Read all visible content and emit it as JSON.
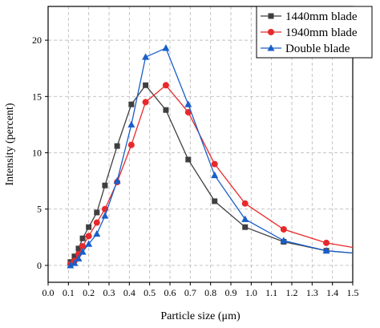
{
  "chart_data": {
    "type": "line",
    "title": "",
    "xlabel": "Particle size (μm)",
    "ylabel": "Intensity (percent)",
    "xlim": [
      0.0,
      1.5
    ],
    "ylim": [
      -1.5,
      23.0
    ],
    "x_ticks": [
      "0.0",
      "0.1",
      "0.2",
      "0.3",
      "0.4",
      "0.5",
      "0.6",
      "0.7",
      "0.8",
      "0.9",
      "1.0",
      "1.1",
      "1.2",
      "1.3",
      "1.4",
      "1.5"
    ],
    "y_ticks": [
      "0",
      "5",
      "10",
      "15",
      "20"
    ],
    "grid": true,
    "legend_position": "top-right",
    "series": [
      {
        "name": "1440mm blade",
        "color": "#3f3f3f",
        "marker": "square",
        "x": [
          0.11,
          0.13,
          0.15,
          0.17,
          0.2,
          0.24,
          0.28,
          0.34,
          0.41,
          0.48,
          0.58,
          0.69,
          0.82,
          0.97,
          1.16,
          1.37,
          1.5
        ],
        "y": [
          0.3,
          0.8,
          1.5,
          2.4,
          3.4,
          4.7,
          7.1,
          10.6,
          14.3,
          16.0,
          13.8,
          9.4,
          5.7,
          3.4,
          2.1,
          1.3,
          1.1
        ]
      },
      {
        "name": "1940mm blade",
        "color": "#e8292b",
        "marker": "circle",
        "x": [
          0.11,
          0.13,
          0.15,
          0.17,
          0.2,
          0.24,
          0.28,
          0.34,
          0.41,
          0.48,
          0.58,
          0.69,
          0.82,
          0.97,
          1.16,
          1.37,
          1.5
        ],
        "y": [
          0.1,
          0.4,
          1.0,
          1.7,
          2.6,
          3.8,
          5.0,
          7.4,
          10.7,
          14.5,
          16.0,
          13.6,
          9.0,
          5.5,
          3.2,
          2.0,
          1.6
        ]
      },
      {
        "name": "Double blade",
        "color": "#1a5fc8",
        "marker": "triangle",
        "x": [
          0.11,
          0.13,
          0.15,
          0.17,
          0.2,
          0.24,
          0.28,
          0.34,
          0.41,
          0.48,
          0.58,
          0.69,
          0.82,
          0.97,
          1.16,
          1.37,
          1.5
        ],
        "y": [
          0.0,
          0.2,
          0.6,
          1.2,
          1.9,
          2.8,
          4.4,
          7.5,
          12.5,
          18.5,
          19.3,
          14.3,
          8.0,
          4.1,
          2.2,
          1.3,
          1.1
        ]
      }
    ]
  }
}
